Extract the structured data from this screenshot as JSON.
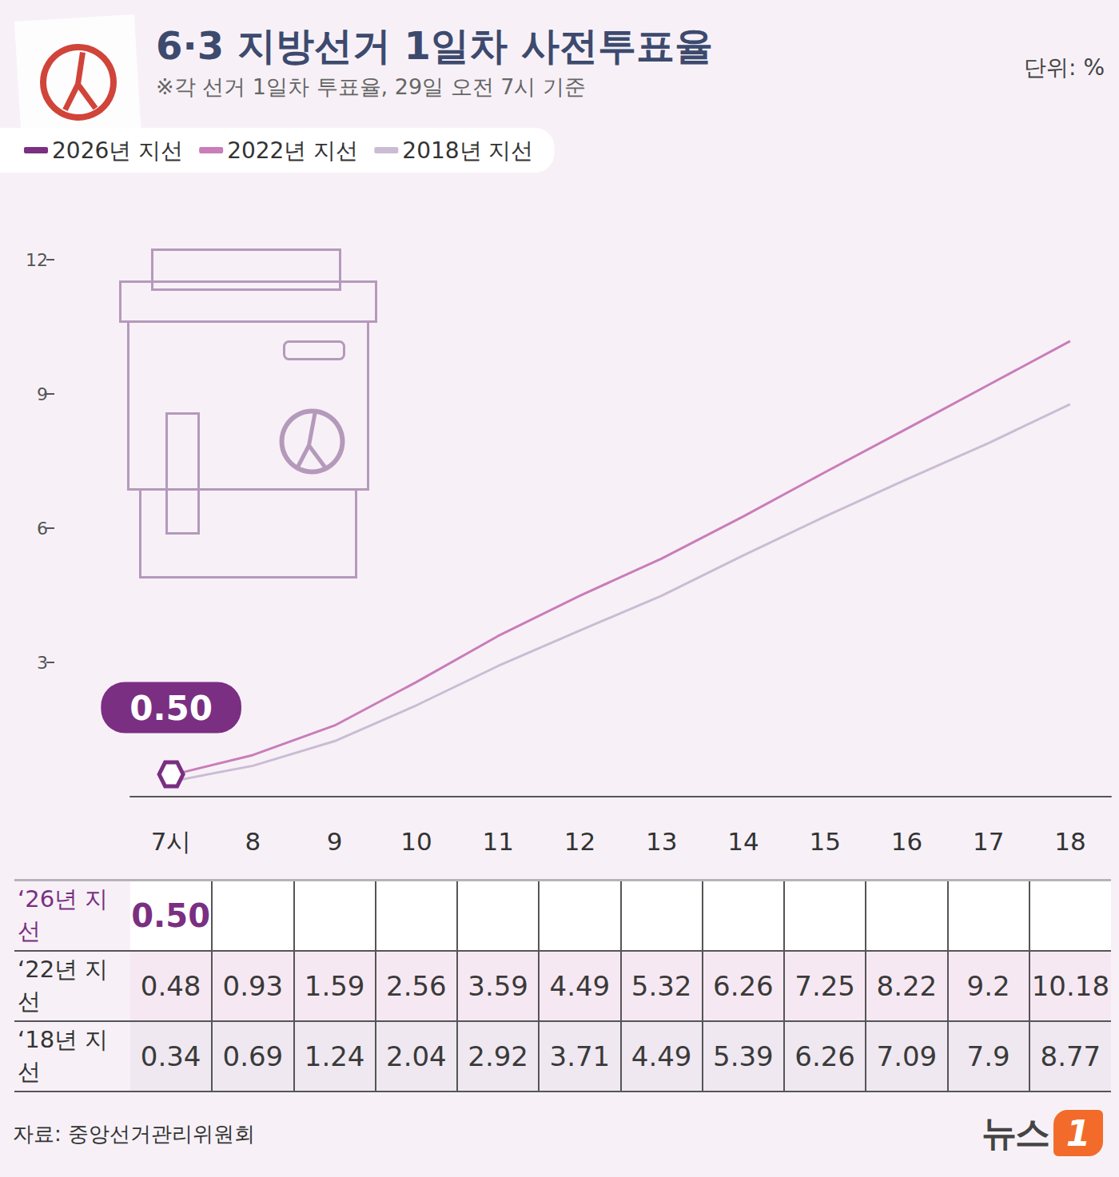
{
  "chart_data": {
    "type": "line",
    "title": "6·3 지방선거 1일차 사전투표율",
    "subtitle": "※각 선거 1일차 투표율, 29일 오전 7시 기준",
    "unit": "단위: %",
    "source": "자료: 중앙선거관리위원회",
    "brand": [
      "뉴스",
      "1"
    ],
    "categories": [
      "7시",
      "8",
      "9",
      "10",
      "11",
      "12",
      "13",
      "14",
      "15",
      "16",
      "17",
      "18"
    ],
    "series": [
      {
        "name": "2026년 지선",
        "row_label": "‘26년 지선",
        "color": "#7a2f82",
        "marker": "hexagon",
        "data_labels": true,
        "values": [
          0.5,
          null,
          null,
          null,
          null,
          null,
          null,
          null,
          null,
          null,
          null,
          null
        ],
        "value_labels": [
          "0.50",
          null,
          null,
          null,
          null,
          null,
          null,
          null,
          null,
          null,
          null,
          null
        ]
      },
      {
        "name": "2022년 지선",
        "row_label": "‘22년 지선",
        "color": "#c97db9",
        "marker": "none",
        "values": [
          0.48,
          0.93,
          1.59,
          2.56,
          3.59,
          4.49,
          5.32,
          6.26,
          7.25,
          8.22,
          9.2,
          10.18
        ]
      },
      {
        "name": "2018년 지선",
        "row_label": "‘18년 지선",
        "color": "#cbbcd4",
        "marker": "none",
        "values": [
          0.34,
          0.69,
          1.24,
          2.04,
          2.92,
          3.71,
          4.49,
          5.39,
          6.26,
          7.09,
          7.9,
          8.77
        ]
      }
    ],
    "ylim": [
      0,
      12
    ],
    "yticks": [
      3,
      6,
      9,
      12
    ],
    "grid": false,
    "legend": "top-left"
  }
}
